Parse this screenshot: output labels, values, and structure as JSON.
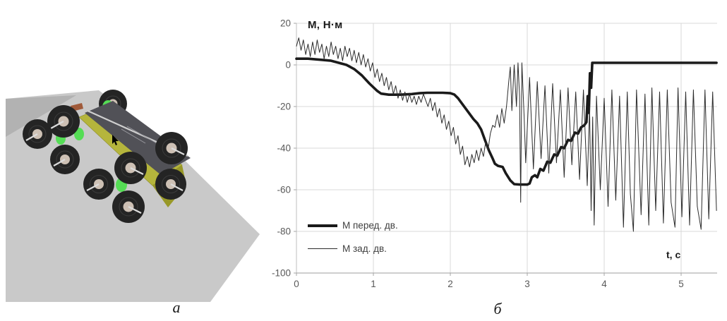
{
  "figure": {
    "panel_a_label": "а",
    "panel_b_label": "б",
    "panel_a_description": "3D simulation render of an eight-wheeled mobile robot climbing an inclined gray surface"
  },
  "scene": {
    "colors": {
      "ground": "#c9c9c9",
      "slope_wedge": "#b2b2b2",
      "body": "#b5b53c",
      "body_shade": "#989827",
      "deck": "#515157",
      "deck_edge": "#cfcfcf",
      "tire": "#242424",
      "hub": "#cdc0b4",
      "mount_green": "#55dd55",
      "front_box": "#a05a3a"
    }
  },
  "chart_data": {
    "type": "line",
    "title": "М, Н·м",
    "x_axis_label": "t, c",
    "xlim": [
      0,
      5.47
    ],
    "ylim": [
      -100,
      20
    ],
    "x_ticks": [
      0,
      1,
      2,
      3,
      4,
      5
    ],
    "y_ticks": [
      20,
      0,
      -20,
      -40,
      -60,
      -80,
      -100
    ],
    "grid": true,
    "legend": {
      "position": "inside bottom-left",
      "entries": [
        "М перед. дв.",
        "М зад. дв."
      ]
    },
    "series": [
      {
        "name": "М перед. дв.",
        "line": "thick",
        "width": 3.6,
        "color": "#1a1a1a",
        "points": [
          [
            0,
            3
          ],
          [
            0.15,
            3
          ],
          [
            0.3,
            2.5
          ],
          [
            0.45,
            2
          ],
          [
            0.55,
            1
          ],
          [
            0.65,
            0
          ],
          [
            0.75,
            -2
          ],
          [
            0.85,
            -5
          ],
          [
            0.95,
            -9
          ],
          [
            1.05,
            -12.5
          ],
          [
            1.1,
            -13.8
          ],
          [
            1.2,
            -14.3
          ],
          [
            1.35,
            -14.3
          ],
          [
            1.5,
            -14
          ],
          [
            1.6,
            -13.6
          ],
          [
            1.7,
            -13.4
          ],
          [
            1.8,
            -13.4
          ],
          [
            1.9,
            -13.4
          ],
          [
            2.0,
            -13.6
          ],
          [
            2.05,
            -14.2
          ],
          [
            2.1,
            -16
          ],
          [
            2.2,
            -21
          ],
          [
            2.3,
            -26
          ],
          [
            2.35,
            -28
          ],
          [
            2.4,
            -31
          ],
          [
            2.45,
            -36
          ],
          [
            2.5,
            -41
          ],
          [
            2.55,
            -45
          ],
          [
            2.58,
            -47.5
          ],
          [
            2.62,
            -48.5
          ],
          [
            2.68,
            -49
          ],
          [
            2.72,
            -52
          ],
          [
            2.78,
            -55.5
          ],
          [
            2.83,
            -57.3
          ],
          [
            2.9,
            -57.5
          ],
          [
            3.0,
            -57.5
          ],
          [
            3.03,
            -57
          ],
          [
            3.06,
            -54
          ],
          [
            3.1,
            -53
          ],
          [
            3.13,
            -54
          ],
          [
            3.17,
            -50
          ],
          [
            3.21,
            -50.8
          ],
          [
            3.26,
            -46.5
          ],
          [
            3.3,
            -47
          ],
          [
            3.35,
            -43
          ],
          [
            3.39,
            -43.6
          ],
          [
            3.44,
            -39.5
          ],
          [
            3.48,
            -40
          ],
          [
            3.53,
            -36
          ],
          [
            3.57,
            -36.5
          ],
          [
            3.62,
            -32.5
          ],
          [
            3.66,
            -33
          ],
          [
            3.7,
            -30
          ],
          [
            3.74,
            -29
          ],
          [
            3.77,
            -27.5
          ],
          [
            3.785,
            -15
          ],
          [
            3.8,
            -23
          ],
          [
            3.815,
            -4
          ],
          [
            3.83,
            -11
          ],
          [
            3.845,
            1
          ],
          [
            3.86,
            1
          ],
          [
            4.2,
            1
          ],
          [
            5.46,
            1
          ]
        ]
      },
      {
        "name": "М зад. дв.",
        "line": "thin",
        "width": 1,
        "color": "#2b2b2b",
        "points": [
          [
            0,
            9
          ],
          [
            0.03,
            13
          ],
          [
            0.06,
            7
          ],
          [
            0.09,
            12
          ],
          [
            0.12,
            5
          ],
          [
            0.15,
            10
          ],
          [
            0.18,
            4
          ],
          [
            0.21,
            11
          ],
          [
            0.24,
            5
          ],
          [
            0.27,
            12
          ],
          [
            0.3,
            6
          ],
          [
            0.33,
            10
          ],
          [
            0.36,
            3
          ],
          [
            0.39,
            9
          ],
          [
            0.42,
            4
          ],
          [
            0.45,
            11
          ],
          [
            0.48,
            5
          ],
          [
            0.51,
            9
          ],
          [
            0.54,
            3
          ],
          [
            0.57,
            8
          ],
          [
            0.6,
            2
          ],
          [
            0.63,
            9
          ],
          [
            0.66,
            4
          ],
          [
            0.69,
            8
          ],
          [
            0.72,
            2
          ],
          [
            0.75,
            7
          ],
          [
            0.78,
            1
          ],
          [
            0.81,
            6
          ],
          [
            0.84,
            0
          ],
          [
            0.87,
            5
          ],
          [
            0.9,
            -1
          ],
          [
            0.93,
            3
          ],
          [
            0.96,
            -3
          ],
          [
            0.99,
            1
          ],
          [
            1.02,
            -6
          ],
          [
            1.05,
            -2
          ],
          [
            1.08,
            -8
          ],
          [
            1.11,
            -4
          ],
          [
            1.14,
            -10
          ],
          [
            1.17,
            -6
          ],
          [
            1.2,
            -12
          ],
          [
            1.23,
            -8
          ],
          [
            1.26,
            -14
          ],
          [
            1.29,
            -10
          ],
          [
            1.32,
            -16
          ],
          [
            1.35,
            -12
          ],
          [
            1.38,
            -17
          ],
          [
            1.41,
            -13
          ],
          [
            1.44,
            -18
          ],
          [
            1.47,
            -14
          ],
          [
            1.5,
            -18
          ],
          [
            1.53,
            -15
          ],
          [
            1.56,
            -19
          ],
          [
            1.59,
            -15
          ],
          [
            1.62,
            -18
          ],
          [
            1.65,
            -14
          ],
          [
            1.68,
            -17
          ],
          [
            1.71,
            -20
          ],
          [
            1.74,
            -16
          ],
          [
            1.77,
            -22
          ],
          [
            1.8,
            -18
          ],
          [
            1.83,
            -25
          ],
          [
            1.86,
            -21
          ],
          [
            1.89,
            -28
          ],
          [
            1.92,
            -24
          ],
          [
            1.95,
            -31
          ],
          [
            1.98,
            -27
          ],
          [
            2.01,
            -34
          ],
          [
            2.04,
            -30
          ],
          [
            2.07,
            -38
          ],
          [
            2.1,
            -34
          ],
          [
            2.13,
            -43
          ],
          [
            2.16,
            -39
          ],
          [
            2.19,
            -48
          ],
          [
            2.22,
            -44
          ],
          [
            2.25,
            -49
          ],
          [
            2.28,
            -43
          ],
          [
            2.31,
            -47
          ],
          [
            2.34,
            -41
          ],
          [
            2.37,
            -46
          ],
          [
            2.4,
            -40
          ],
          [
            2.43,
            -44
          ],
          [
            2.46,
            -37
          ],
          [
            2.49,
            -41
          ],
          [
            2.52,
            -33
          ],
          [
            2.55,
            -29
          ],
          [
            2.58,
            -30
          ],
          [
            2.61,
            -24
          ],
          [
            2.64,
            -30
          ],
          [
            2.67,
            -21
          ],
          [
            2.7,
            -28
          ],
          [
            2.73,
            -20
          ],
          [
            2.76,
            -8
          ],
          [
            2.78,
            -1
          ],
          [
            2.8,
            -22
          ],
          [
            2.83,
            0
          ],
          [
            2.86,
            -20
          ],
          [
            2.88,
            1
          ],
          [
            2.9,
            -15
          ],
          [
            2.915,
            -66
          ],
          [
            2.93,
            1
          ],
          [
            2.96,
            -25
          ],
          [
            2.98,
            -47
          ],
          [
            3.03,
            -6
          ],
          [
            3.08,
            -50
          ],
          [
            3.13,
            -8
          ],
          [
            3.18,
            -45
          ],
          [
            3.23,
            -10
          ],
          [
            3.28,
            -52
          ],
          [
            3.33,
            -9
          ],
          [
            3.38,
            -47
          ],
          [
            3.43,
            -12
          ],
          [
            3.48,
            -54
          ],
          [
            3.53,
            -11
          ],
          [
            3.58,
            -48
          ],
          [
            3.63,
            -13
          ],
          [
            3.68,
            -55
          ],
          [
            3.73,
            -12
          ],
          [
            3.78,
            -58
          ],
          [
            3.81,
            -20
          ],
          [
            3.83,
            -70
          ],
          [
            3.85,
            -25
          ],
          [
            3.87,
            -77
          ],
          [
            3.9,
            -15
          ],
          [
            3.95,
            -60
          ],
          [
            4.0,
            -16
          ],
          [
            4.05,
            -68
          ],
          [
            4.1,
            -12
          ],
          [
            4.15,
            -65
          ],
          [
            4.2,
            -15
          ],
          [
            4.25,
            -78
          ],
          [
            4.3,
            -13
          ],
          [
            4.34,
            -62
          ],
          [
            4.38,
            -80
          ],
          [
            4.42,
            -12
          ],
          [
            4.48,
            -72
          ],
          [
            4.53,
            -14
          ],
          [
            4.58,
            -77
          ],
          [
            4.62,
            -11
          ],
          [
            4.67,
            -70
          ],
          [
            4.72,
            -13
          ],
          [
            4.77,
            -76
          ],
          [
            4.82,
            -12
          ],
          [
            4.87,
            -66
          ],
          [
            4.92,
            -78
          ],
          [
            4.96,
            -11
          ],
          [
            5.01,
            -73
          ],
          [
            5.06,
            -13
          ],
          [
            5.11,
            -77
          ],
          [
            5.16,
            -12
          ],
          [
            5.21,
            -68
          ],
          [
            5.26,
            -79
          ],
          [
            5.31,
            -12
          ],
          [
            5.36,
            -74
          ],
          [
            5.41,
            -13
          ],
          [
            5.46,
            -70
          ]
        ]
      }
    ]
  }
}
